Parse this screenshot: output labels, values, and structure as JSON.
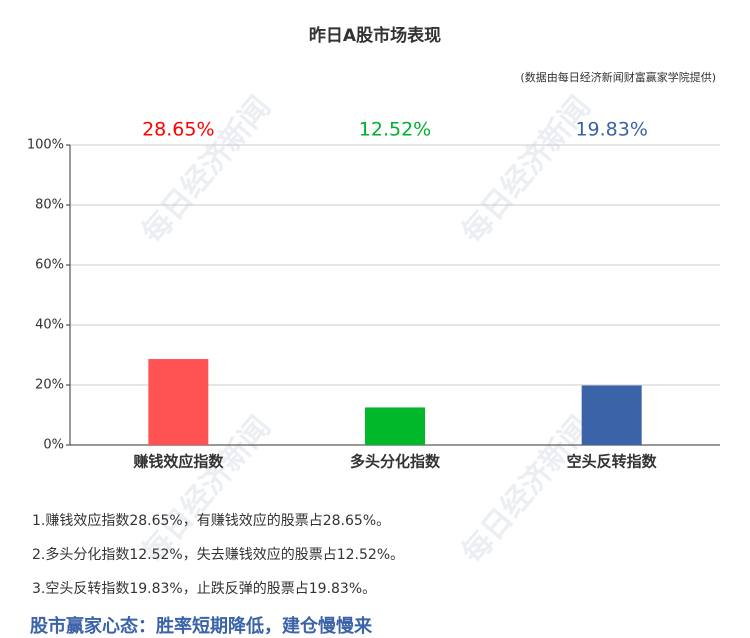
{
  "chart_data": {
    "type": "bar",
    "title": "昨日A股市场表现",
    "subtitle": "(数据由每日经济新闻财富赢家学院提供)",
    "categories": [
      "赚钱效应指数",
      "多头分化指数",
      "空头反转指数"
    ],
    "values": [
      28.65,
      12.52,
      19.83
    ],
    "value_labels": [
      "28.65%",
      "12.52%",
      "19.83%"
    ],
    "colors": [
      "#ff5252",
      "#00b82a",
      "#3b63a8"
    ],
    "label_colors": [
      "#ff0000",
      "#00b030",
      "#3b63a8"
    ],
    "ylim": [
      0,
      100
    ],
    "yticks": [
      {
        "value": 0,
        "label": "0%"
      },
      {
        "value": 20,
        "label": "20%"
      },
      {
        "value": 40,
        "label": "40%"
      },
      {
        "value": 60,
        "label": "60%"
      },
      {
        "value": 80,
        "label": "80%"
      },
      {
        "value": 100,
        "label": "100%"
      }
    ],
    "grid": true
  },
  "notes": [
    "1.赚钱效应指数28.65%，有赚钱效应的股票占28.65%。",
    "2.多头分化指数12.52%，失去赚钱效应的股票占12.52%。",
    "3.空头反转指数19.83%，止跌反弹的股票占19.83%。"
  ],
  "footer": "股市赢家心态：胜率短期降低，建仓慢慢来",
  "watermark": "每日经济新闻"
}
